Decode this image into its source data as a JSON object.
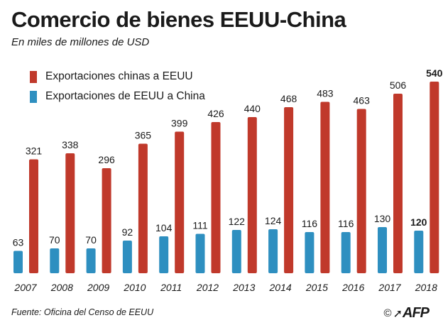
{
  "title": "Comercio de bienes EEUU-China",
  "subtitle": "En miles de millones de USD",
  "legend": [
    {
      "label": "Exportaciones chinas a EEUU",
      "color": "#c0392b"
    },
    {
      "label": "Exportaciones de EEUU a China",
      "color": "#2e8fc0"
    }
  ],
  "source": "Fuente: Oficina del Censo de EEUU",
  "credit": {
    "symbol": "©",
    "logo": "AFP"
  },
  "chart_data": {
    "type": "bar",
    "categories": [
      "2007",
      "2008",
      "2009",
      "2010",
      "2011",
      "2012",
      "2013",
      "2014",
      "2015",
      "2016",
      "2017",
      "2018"
    ],
    "series": [
      {
        "name": "Exportaciones chinas a EEUU",
        "color": "#c0392b",
        "values": [
          321,
          338,
          296,
          365,
          399,
          426,
          440,
          468,
          483,
          463,
          506,
          540
        ]
      },
      {
        "name": "Exportaciones de EEUU a China",
        "color": "#2e8fc0",
        "values": [
          63,
          70,
          70,
          92,
          104,
          111,
          122,
          124,
          116,
          116,
          130,
          120
        ]
      }
    ],
    "highlight_category": "2018",
    "title": "Comercio de bienes EEUU-China",
    "subtitle": "En miles de millones de USD",
    "xlabel": "",
    "ylabel": "",
    "ylim": [
      0,
      540
    ],
    "grid": false,
    "legend_position": "top-left"
  }
}
